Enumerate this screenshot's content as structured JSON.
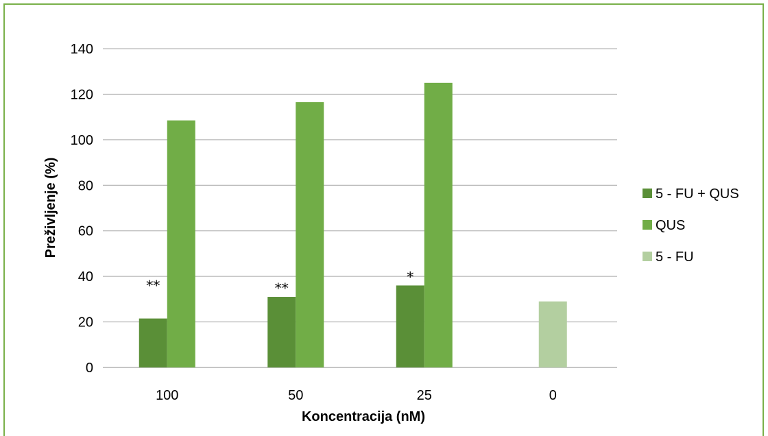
{
  "chart_data": {
    "type": "bar",
    "categories": [
      "100",
      "50",
      "25",
      "0"
    ],
    "series": [
      {
        "name": "5 - FU + QUS",
        "color": "#5a8f37",
        "values": [
          21.5,
          31,
          36,
          null
        ]
      },
      {
        "name": "QUS",
        "color": "#71ad47",
        "values": [
          108.5,
          116.5,
          125,
          null
        ]
      },
      {
        "name": "5 - FU",
        "color": "#b3cfa0",
        "values": [
          null,
          null,
          null,
          29
        ]
      }
    ],
    "annotations": [
      {
        "category": "100",
        "series": "5 - FU + QUS",
        "text": "**"
      },
      {
        "category": "50",
        "series": "5 - FU + QUS",
        "text": "**"
      },
      {
        "category": "25",
        "series": "5 - FU + QUS",
        "text": "*"
      }
    ],
    "xlabel": "Koncentracija (nM)",
    "ylabel": "Preživljenje (%)",
    "ylim": [
      0,
      140
    ],
    "yticks": [
      0,
      20,
      40,
      60,
      80,
      100,
      120,
      140
    ],
    "grid": true,
    "legend_position": "right"
  }
}
